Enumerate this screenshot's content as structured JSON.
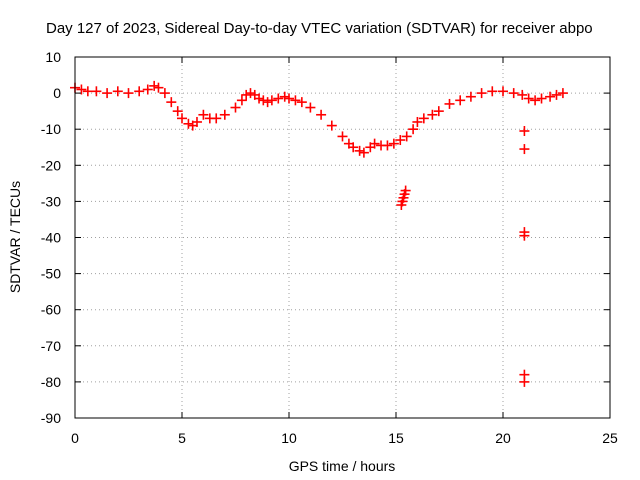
{
  "chart_data": {
    "type": "scatter",
    "title": "Day 127 of 2023, Sidereal Day-to-day VTEC variation (SDTVAR) for receiver abpo",
    "xlabel": "GPS time / hours",
    "ylabel": "SDTVAR / TECUs",
    "xlim": [
      0,
      25
    ],
    "ylim": [
      -90,
      10
    ],
    "xticks": [
      0,
      5,
      10,
      15,
      20,
      25
    ],
    "yticks": [
      10,
      0,
      -10,
      -20,
      -30,
      -40,
      -50,
      -60,
      -70,
      -80,
      -90
    ],
    "grid": true,
    "marker": "plus",
    "color": "#ff0000",
    "series": [
      {
        "name": "SDTVAR",
        "x": [
          0.0,
          0.3,
          0.6,
          1.0,
          1.5,
          2.0,
          2.5,
          3.0,
          3.4,
          3.7,
          3.9,
          4.2,
          4.5,
          4.8,
          5.0,
          5.3,
          5.5,
          5.7,
          6.0,
          6.3,
          6.6,
          7.0,
          7.5,
          7.8,
          8.0,
          8.2,
          8.4,
          8.6,
          8.8,
          9.0,
          9.2,
          9.5,
          9.8,
          10.0,
          10.3,
          10.6,
          11.0,
          11.5,
          12.0,
          12.5,
          12.8,
          13.0,
          13.3,
          13.5,
          13.8,
          14.0,
          14.3,
          14.6,
          14.9,
          15.2,
          15.5,
          15.8,
          16.0,
          16.3,
          16.7,
          17.0,
          17.5,
          18.0,
          18.5,
          19.0,
          19.5,
          20.0,
          20.5,
          20.9,
          21.2,
          21.5,
          21.8,
          22.2,
          22.5,
          22.8,
          15.25,
          15.3,
          15.35,
          15.4,
          15.45,
          21.0,
          21.0,
          21.0,
          21.0,
          21.0,
          21.0
        ],
        "y": [
          1.5,
          1.0,
          0.5,
          0.5,
          0.0,
          0.5,
          0.0,
          0.5,
          1.0,
          2.0,
          1.5,
          0.0,
          -2.5,
          -5.0,
          -7.0,
          -8.5,
          -9.0,
          -8.0,
          -6.0,
          -7.0,
          -7.0,
          -6.0,
          -4.0,
          -2.0,
          -0.5,
          0.0,
          -0.5,
          -1.5,
          -2.0,
          -2.5,
          -2.0,
          -1.5,
          -1.0,
          -1.5,
          -2.0,
          -2.5,
          -4.0,
          -6.0,
          -9.0,
          -12.0,
          -14.0,
          -15.0,
          -16.0,
          -16.5,
          -15.0,
          -14.0,
          -14.5,
          -14.5,
          -14.0,
          -13.0,
          -12.0,
          -10.0,
          -8.0,
          -7.0,
          -6.0,
          -5.0,
          -3.0,
          -2.0,
          -1.0,
          0.0,
          0.5,
          0.5,
          0.0,
          -0.5,
          -1.5,
          -2.0,
          -1.5,
          -1.0,
          -0.5,
          0.0,
          -31.0,
          -30.0,
          -29.0,
          -28.0,
          -27.0,
          -10.5,
          -15.5,
          -38.5,
          -39.5,
          -78.0,
          -80.0
        ]
      }
    ]
  }
}
